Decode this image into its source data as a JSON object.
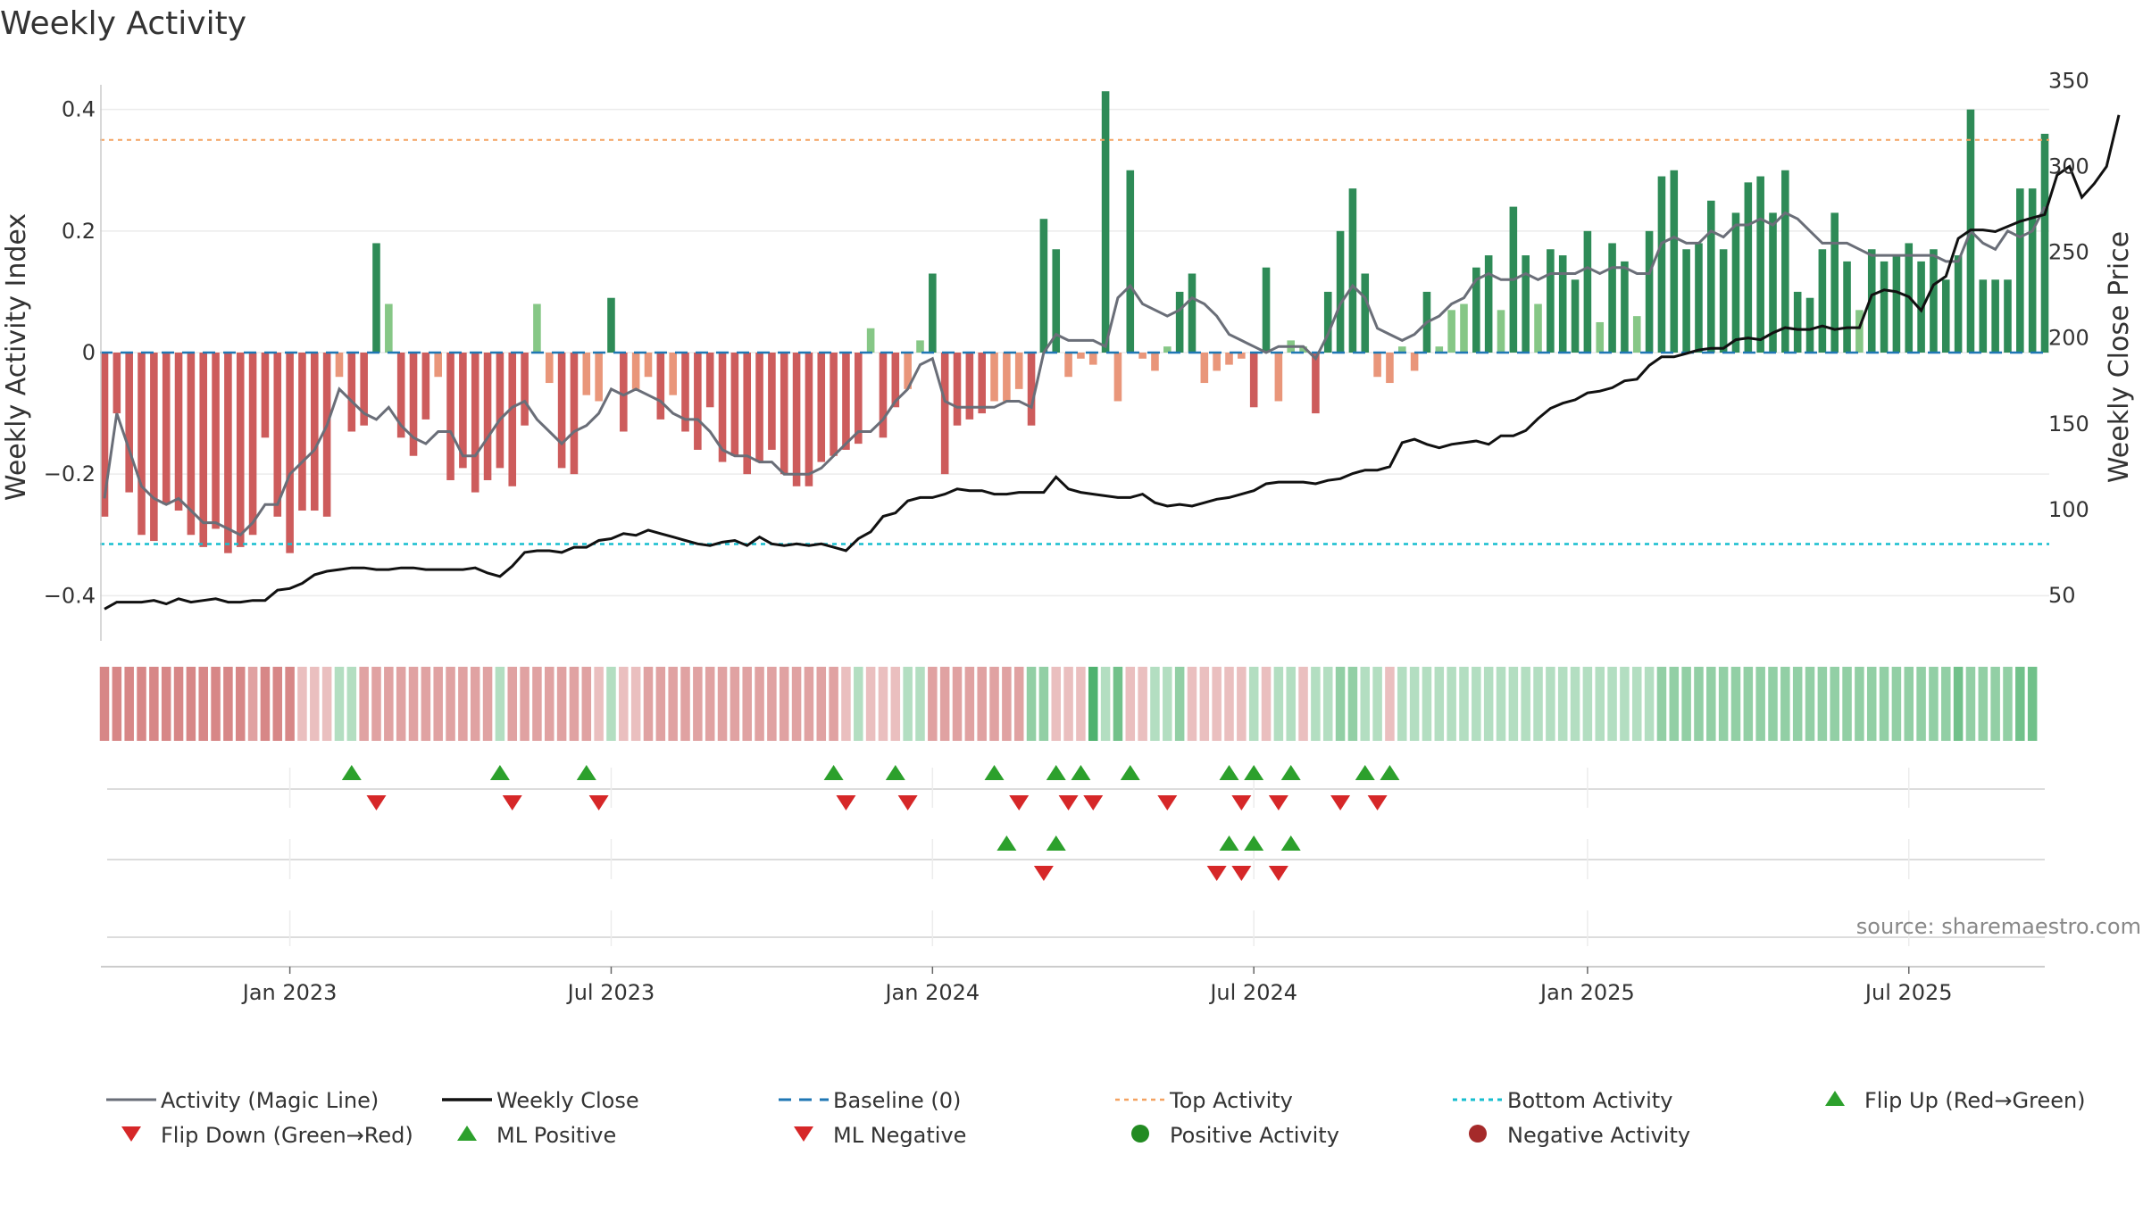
{
  "colors": {
    "pos_dark": "#2e8b57",
    "pos_light": "#86c786",
    "neg_dark": "#cd5c5c",
    "neg_light": "#e9967a",
    "magic_line": "#6a6e78",
    "close_line": "#111111",
    "baseline": "#1f77b4",
    "top": "#f4a261",
    "bottom": "#17becf",
    "up": "#2ca02c",
    "down": "#d62728"
  },
  "chart_data": {
    "type": "bar",
    "title": "Weekly Activity",
    "ylabel": "Weekly Activity Index",
    "y2label": "Weekly Close Price",
    "ylim": [
      -0.47,
      0.47
    ],
    "y2lim": [
      25,
      358
    ],
    "yticks": [
      {
        "v": 0.4,
        "label": "0.4"
      },
      {
        "v": 0.2,
        "label": "0.2"
      },
      {
        "v": 0,
        "label": "0"
      },
      {
        "v": -0.2,
        "label": "−0.2"
      },
      {
        "v": -0.4,
        "label": "−0.4"
      }
    ],
    "y2ticks": [
      {
        "v": 350,
        "label": "350"
      },
      {
        "v": 300,
        "label": "300"
      },
      {
        "v": 250,
        "label": "250"
      },
      {
        "v": 200,
        "label": "200"
      },
      {
        "v": 150,
        "label": "150"
      },
      {
        "v": 100,
        "label": "100"
      },
      {
        "v": 50,
        "label": "50"
      }
    ],
    "xticks": [
      {
        "week": 15,
        "label": "Jan 2023"
      },
      {
        "week": 41,
        "label": "Jul 2023"
      },
      {
        "week": 67,
        "label": "Jan 2024"
      },
      {
        "week": 93,
        "label": "Jul 2024"
      },
      {
        "week": 120,
        "label": "Jan 2025"
      },
      {
        "week": 146,
        "label": "Jul 2025"
      }
    ],
    "top_activity": 0.35,
    "bottom_activity": -0.315,
    "activity": [
      -0.27,
      -0.1,
      -0.23,
      -0.3,
      -0.31,
      -0.25,
      -0.26,
      -0.3,
      -0.32,
      -0.29,
      -0.33,
      -0.32,
      -0.3,
      -0.14,
      -0.27,
      -0.33,
      -0.26,
      -0.26,
      -0.27,
      -0.04,
      -0.13,
      -0.12,
      0.18,
      0.08,
      -0.14,
      -0.17,
      -0.11,
      -0.04,
      -0.21,
      -0.19,
      -0.23,
      -0.21,
      -0.19,
      -0.22,
      -0.12,
      0.08,
      -0.05,
      -0.19,
      -0.2,
      -0.07,
      -0.08,
      0.09,
      -0.13,
      -0.06,
      -0.04,
      -0.11,
      -0.07,
      -0.13,
      -0.16,
      -0.09,
      -0.18,
      -0.17,
      -0.2,
      -0.18,
      -0.16,
      -0.2,
      -0.22,
      -0.22,
      -0.18,
      -0.17,
      -0.16,
      -0.15,
      0.04,
      -0.14,
      -0.09,
      -0.06,
      0.02,
      0.13,
      -0.2,
      -0.12,
      -0.11,
      -0.1,
      -0.08,
      -0.08,
      -0.06,
      -0.12,
      0.22,
      0.17,
      -0.04,
      -0.01,
      -0.02,
      0.43,
      -0.08,
      0.3,
      -0.01,
      -0.03,
      0.01,
      0.1,
      0.13,
      -0.05,
      -0.03,
      -0.02,
      -0.01,
      -0.09,
      0.14,
      -0.08,
      0.02,
      0.01,
      -0.1,
      0.1,
      0.2,
      0.27,
      0.13,
      -0.04,
      -0.05,
      0.01,
      -0.03,
      0.1,
      0.01,
      0.07,
      0.08,
      0.14,
      0.16,
      0.07,
      0.24,
      0.16,
      0.08,
      0.17,
      0.16,
      0.12,
      0.2,
      0.05,
      0.18,
      0.15,
      0.06,
      0.2,
      0.29,
      0.3,
      0.17,
      0.18,
      0.25,
      0.17,
      0.23,
      0.28,
      0.29,
      0.23,
      0.3,
      0.1,
      0.09,
      0.17,
      0.23,
      0.15,
      0.07,
      0.17,
      0.15,
      0.16,
      0.18,
      0.15,
      0.17,
      0.12,
      0.16,
      0.4,
      0.12,
      0.12,
      0.12,
      0.27,
      0.27,
      0.36
    ],
    "magic_line": [
      -0.24,
      -0.1,
      -0.16,
      -0.22,
      -0.24,
      -0.25,
      -0.24,
      -0.26,
      -0.28,
      -0.28,
      -0.29,
      -0.3,
      -0.28,
      -0.25,
      -0.25,
      -0.2,
      -0.18,
      -0.16,
      -0.12,
      -0.06,
      -0.08,
      -0.1,
      -0.11,
      -0.09,
      -0.12,
      -0.14,
      -0.15,
      -0.13,
      -0.13,
      -0.17,
      -0.17,
      -0.14,
      -0.11,
      -0.09,
      -0.08,
      -0.11,
      -0.13,
      -0.15,
      -0.13,
      -0.12,
      -0.1,
      -0.06,
      -0.07,
      -0.06,
      -0.07,
      -0.08,
      -0.1,
      -0.11,
      -0.11,
      -0.13,
      -0.16,
      -0.17,
      -0.17,
      -0.18,
      -0.18,
      -0.2,
      -0.2,
      -0.2,
      -0.19,
      -0.17,
      -0.15,
      -0.13,
      -0.13,
      -0.11,
      -0.08,
      -0.06,
      -0.02,
      -0.01,
      -0.08,
      -0.09,
      -0.09,
      -0.09,
      -0.09,
      -0.08,
      -0.08,
      -0.09,
      0.0,
      0.03,
      0.02,
      0.02,
      0.02,
      0.01,
      0.09,
      0.11,
      0.08,
      0.07,
      0.06,
      0.07,
      0.09,
      0.08,
      0.06,
      0.03,
      0.02,
      0.01,
      0.0,
      0.01,
      0.01,
      0.01,
      -0.01,
      0.03,
      0.08,
      0.11,
      0.09,
      0.04,
      0.03,
      0.02,
      0.03,
      0.05,
      0.06,
      0.08,
      0.09,
      0.12,
      0.13,
      0.12,
      0.12,
      0.13,
      0.12,
      0.13,
      0.13,
      0.13,
      0.14,
      0.13,
      0.14,
      0.14,
      0.13,
      0.13,
      0.18,
      0.19,
      0.18,
      0.18,
      0.2,
      0.19,
      0.21,
      0.21,
      0.22,
      0.21,
      0.23,
      0.22,
      0.2,
      0.18,
      0.18,
      0.18,
      0.17,
      0.16,
      0.16,
      0.16,
      0.16,
      0.16,
      0.16,
      0.15,
      0.15,
      0.2,
      0.18,
      0.17,
      0.2,
      0.19,
      0.2,
      0.24
    ],
    "weekly_close": [
      42,
      46,
      46,
      46,
      47,
      45,
      48,
      46,
      47,
      48,
      46,
      46,
      47,
      47,
      53,
      54,
      57,
      62,
      64,
      65,
      66,
      66,
      65,
      65,
      66,
      66,
      65,
      65,
      65,
      65,
      66,
      63,
      61,
      67,
      75,
      76,
      76,
      75,
      78,
      78,
      82,
      83,
      86,
      85,
      88,
      86,
      84,
      82,
      80,
      79,
      81,
      82,
      79,
      84,
      80,
      79,
      80,
      79,
      80,
      78,
      76,
      83,
      87,
      96,
      98,
      105,
      107,
      107,
      109,
      112,
      111,
      111,
      109,
      109,
      110,
      110,
      110,
      119,
      112,
      110,
      109,
      108,
      107,
      107,
      109,
      104,
      102,
      103,
      102,
      104,
      106,
      107,
      109,
      111,
      115,
      116,
      116,
      116,
      115,
      117,
      118,
      121,
      123,
      123,
      125,
      139,
      141,
      138,
      136,
      138,
      139,
      140,
      138,
      143,
      143,
      146,
      153,
      159,
      162,
      164,
      168,
      169,
      171,
      175,
      176,
      184,
      189,
      189,
      191,
      193,
      194,
      194,
      199,
      200,
      199,
      203,
      206,
      205,
      205,
      207,
      205,
      206,
      206,
      225,
      228,
      227,
      224,
      216,
      231,
      236,
      258,
      263,
      263,
      262,
      265,
      268,
      270,
      272,
      295,
      300,
      282,
      290,
      300,
      330
    ],
    "heat_levels": [
      -0.3,
      -0.3,
      -0.3,
      -0.3,
      -0.3,
      -0.3,
      -0.3,
      -0.3,
      -0.3,
      -0.3,
      -0.3,
      -0.3,
      -0.2,
      -0.3,
      -0.3,
      -0.3,
      -0.1,
      -0.1,
      -0.1,
      0.1,
      0.1,
      -0.2,
      -0.2,
      -0.2,
      -0.2,
      -0.2,
      -0.2,
      -0.2,
      -0.2,
      -0.2,
      -0.2,
      -0.2,
      0.1,
      -0.2,
      -0.2,
      -0.2,
      -0.2,
      -0.2,
      -0.2,
      -0.2,
      -0.1,
      0.1,
      -0.1,
      -0.1,
      -0.2,
      -0.2,
      -0.2,
      -0.2,
      -0.2,
      -0.2,
      -0.2,
      -0.2,
      -0.2,
      -0.2,
      -0.2,
      -0.2,
      -0.2,
      -0.2,
      -0.2,
      -0.2,
      -0.1,
      0.1,
      -0.1,
      -0.1,
      -0.1,
      0.1,
      0.1,
      -0.2,
      -0.2,
      -0.2,
      -0.2,
      -0.2,
      -0.2,
      -0.2,
      -0.2,
      0.2,
      0.2,
      -0.1,
      -0.1,
      -0.1,
      0.4,
      0.1,
      0.3,
      -0.1,
      -0.1,
      0.1,
      0.1,
      0.2,
      -0.1,
      -0.1,
      -0.1,
      -0.1,
      -0.1,
      0.1,
      -0.1,
      0.1,
      0.1,
      -0.1,
      0.1,
      0.1,
      0.2,
      0.2,
      0.1,
      0.1,
      -0.1,
      0.1,
      0.1,
      0.1,
      0.1,
      0.1,
      0.1,
      0.1,
      0.1,
      0.1,
      0.1,
      0.1,
      0.1,
      0.1,
      0.1,
      0.1,
      0.1,
      0.1,
      0.1,
      0.1,
      0.1,
      0.1,
      0.2,
      0.2,
      0.2,
      0.2,
      0.2,
      0.2,
      0.2,
      0.2,
      0.2,
      0.2,
      0.2,
      0.2,
      0.2,
      0.2,
      0.2,
      0.2,
      0.2,
      0.2,
      0.2,
      0.2,
      0.2,
      0.2,
      0.2,
      0.2,
      0.3,
      0.2,
      0.2,
      0.2,
      0.2,
      0.3,
      0.3
    ],
    "flip_up": [
      20,
      32,
      39,
      59,
      64,
      72,
      77,
      79,
      83,
      91,
      93,
      96,
      102,
      104
    ],
    "flip_down": [
      22,
      33,
      40,
      60,
      65,
      74,
      78,
      80,
      86,
      92,
      95,
      100,
      103
    ],
    "ml_positive": [
      73,
      77,
      91,
      93,
      96
    ],
    "ml_negative": [
      76,
      90,
      92,
      95
    ],
    "legend": [
      {
        "key": "magic",
        "label": "Activity (Magic Line)"
      },
      {
        "key": "close",
        "label": "Weekly Close"
      },
      {
        "key": "baseline",
        "label": "Baseline (0)"
      },
      {
        "key": "top",
        "label": "Top Activity"
      },
      {
        "key": "bottom",
        "label": "Bottom Activity"
      },
      {
        "key": "flipup",
        "label": "Flip Up (Red→Green)"
      },
      {
        "key": "flipdown",
        "label": "Flip Down (Green→Red)"
      },
      {
        "key": "mlpos",
        "label": "ML Positive"
      },
      {
        "key": "mlneg",
        "label": "ML Negative"
      },
      {
        "key": "posact",
        "label": "Positive Activity"
      },
      {
        "key": "negact",
        "label": "Negative Activity"
      }
    ],
    "source": "source: sharemaestro.com"
  }
}
